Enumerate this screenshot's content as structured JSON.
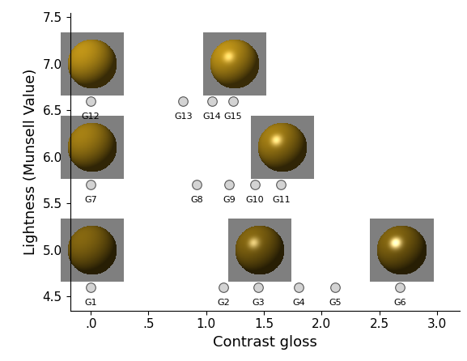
{
  "chart_data": {
    "type": "scatter",
    "xlabel": "Contrast gloss",
    "ylabel": "Lightness (Munsell Value)",
    "point_labels": [
      "G1",
      "G2",
      "G3",
      "G4",
      "G5",
      "G6",
      "G7",
      "G8",
      "G9",
      "G10",
      "G11",
      "G12",
      "G13",
      "G14",
      "G15"
    ],
    "x": [
      0.0,
      1.15,
      1.45,
      1.8,
      2.12,
      2.68,
      0.0,
      0.92,
      1.2,
      1.42,
      1.65,
      0.0,
      0.8,
      1.05,
      1.23
    ],
    "y": [
      4.6,
      4.6,
      4.6,
      4.6,
      4.6,
      4.6,
      5.7,
      5.7,
      5.7,
      5.7,
      5.7,
      6.6,
      6.6,
      6.6,
      6.6
    ],
    "color": "#d3d3d3",
    "marker": "o",
    "xlim": [
      -0.18,
      3.2
    ],
    "xticks": [
      {
        "value": 0,
        "label": ".0"
      },
      {
        "value": 0.5,
        "label": ".5"
      },
      {
        "value": 1.0,
        "label": "1.0"
      },
      {
        "value": 1.5,
        "label": "1.5"
      },
      {
        "value": 2.0,
        "label": "2.0"
      },
      {
        "value": 2.5,
        "label": "2.5"
      },
      {
        "value": 3.0,
        "label": "3.0"
      }
    ],
    "ylim": [
      4.35,
      7.55
    ],
    "yticks": [
      4.5,
      5.0,
      5.5,
      6.0,
      6.5,
      7.0,
      7.5
    ]
  }
}
